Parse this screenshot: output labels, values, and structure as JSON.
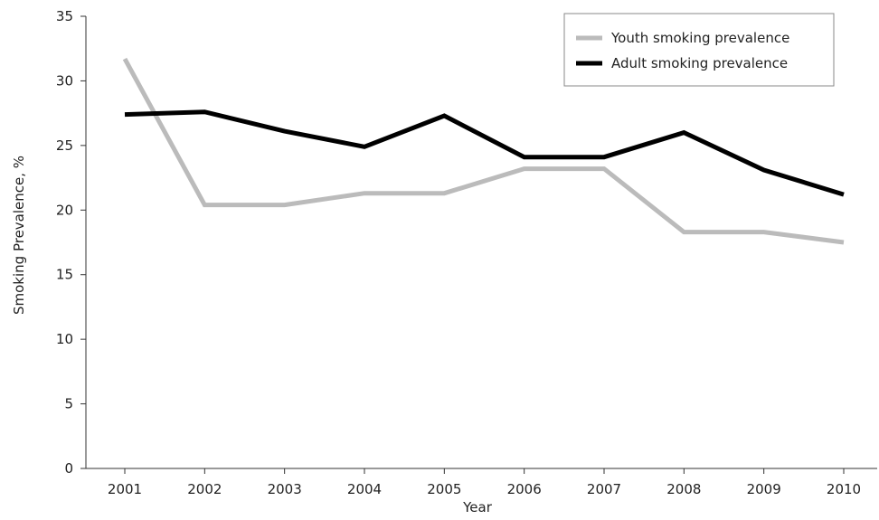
{
  "chart_data": {
    "type": "line",
    "title": "",
    "xlabel": "Year",
    "ylabel": "Smoking Prevalence, %",
    "categories": [
      "2001",
      "2002",
      "2003",
      "2004",
      "2005",
      "2006",
      "2007",
      "2008",
      "2009",
      "2010"
    ],
    "ylim": [
      0,
      35
    ],
    "yticks": [
      "0",
      "5",
      "10",
      "15",
      "20",
      "25",
      "30",
      "35"
    ],
    "grid": false,
    "legend_position": "top-right",
    "series": [
      {
        "name": "Youth smoking prevalence",
        "color": "#bbbbbb",
        "values": [
          31.7,
          20.4,
          20.4,
          21.3,
          21.3,
          23.2,
          23.2,
          18.3,
          18.3,
          17.5
        ]
      },
      {
        "name": "Adult smoking prevalence",
        "color": "#000000",
        "values": [
          27.4,
          27.6,
          26.1,
          24.9,
          27.3,
          24.1,
          24.1,
          26.0,
          23.1,
          21.2
        ]
      }
    ]
  }
}
